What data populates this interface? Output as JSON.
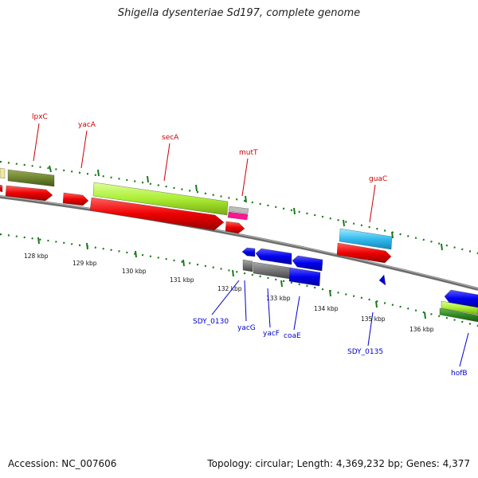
{
  "header": {
    "title": "Shigella dysenteriae Sd197, complete genome"
  },
  "footer": {
    "accession": "Accession: NC_007606",
    "summary": "Topology: circular; Length: 4,369,232 bp; Genes: 4,377"
  },
  "colors": {
    "forward_label": "#cc0000",
    "reverse_label": "#0000cc",
    "backbone": "#808080",
    "tick": "#1a7a1a"
  },
  "kbp_labels": [
    "128 kbp",
    "129 kbp",
    "130 kbp",
    "131 kbp",
    "132 kbp",
    "133 kbp",
    "134 kbp",
    "135 kbp",
    "136 kbp"
  ],
  "forward_genes": [
    "lpxC",
    "yacA",
    "secA",
    "mutT",
    "guaC"
  ],
  "reverse_genes": [
    "SDY_0130",
    "yacG",
    "yacF",
    "coaE",
    "SDY_0135",
    "hofB"
  ]
}
